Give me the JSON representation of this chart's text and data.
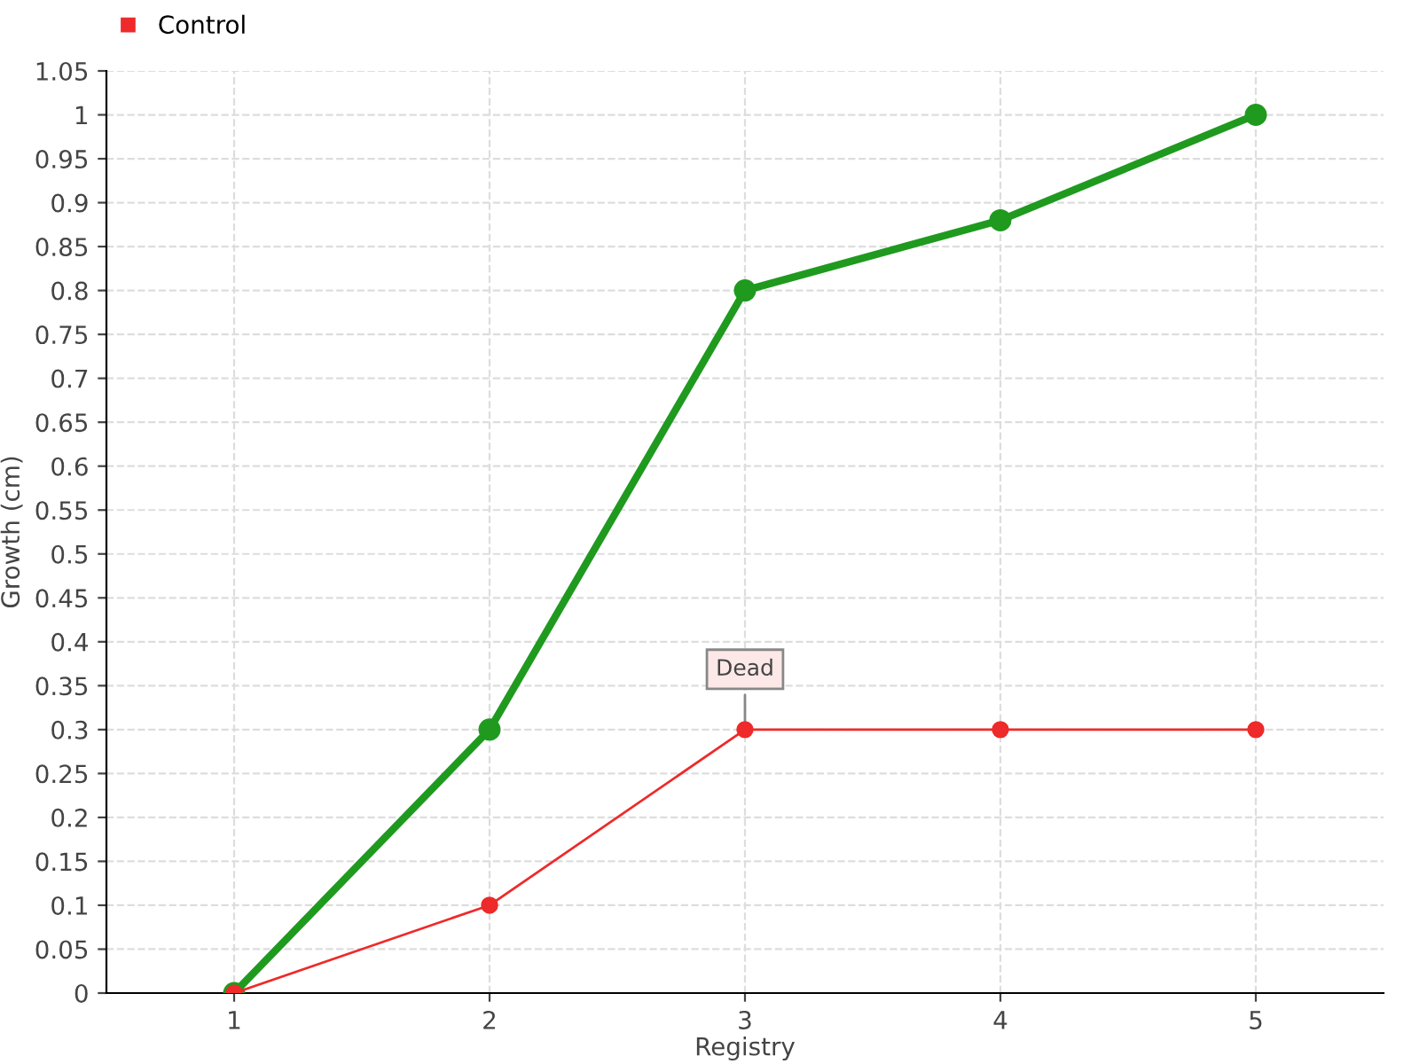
{
  "chart_data": {
    "type": "line",
    "xlabel": "Registry",
    "ylabel": "Growth (cm)",
    "x": [
      1,
      2,
      3,
      4,
      5
    ],
    "series": [
      {
        "color": "#1f9a1f",
        "values": [
          0,
          0.3,
          0.8,
          0.88,
          1
        ]
      },
      {
        "name": "Control",
        "color": "#ee2a2a",
        "values": [
          0,
          0.1,
          0.3,
          0.3,
          0.3
        ]
      }
    ],
    "xlim": [
      0.5,
      5.5
    ],
    "xticks": [
      1,
      2,
      3,
      4,
      5
    ],
    "ylim": [
      0,
      1.05
    ],
    "yticks": [
      0,
      0.05,
      0.1,
      0.15,
      0.2,
      0.25,
      0.3,
      0.35,
      0.4,
      0.45,
      0.5,
      0.55,
      0.6,
      0.65,
      0.7,
      0.75,
      0.8,
      0.85,
      0.9,
      0.95,
      1,
      1.05
    ],
    "annotations": [
      {
        "text": "Dead",
        "x": 3,
        "y": 0.3
      }
    ],
    "grid": true,
    "legend": "top left",
    "marker": "circle",
    "line_style": "solid"
  }
}
